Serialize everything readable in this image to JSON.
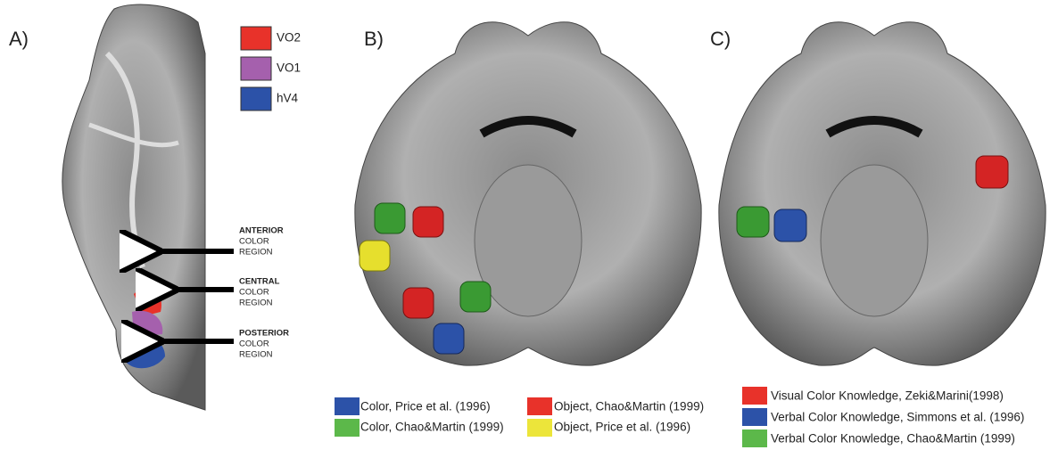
{
  "panels": [
    "A)",
    "B)",
    "C)"
  ],
  "panel_a": {
    "legend": [
      "VO2",
      "VO1",
      "hV4"
    ],
    "regions": [
      [
        "ANTERIOR",
        "COLOR",
        "REGION"
      ],
      [
        "CENTRAL",
        "COLOR",
        "REGION"
      ],
      [
        "POSTERIOR",
        "COLOR",
        "REGION"
      ]
    ]
  },
  "panel_b": {
    "legend": [
      "Color, Price et al. (1996)",
      "Color, Chao&Martin (1999)",
      "Object, Chao&Martin (1999)",
      "Object, Price et al. (1996)"
    ]
  },
  "panel_c": {
    "legend": [
      "Visual Color Knowledge, Zeki&Marini(1998)",
      "Verbal Color Knowledge, Simmons et al. (1996)",
      "Verbal Color Knowledge, Chao&Martin (1999)"
    ]
  }
}
